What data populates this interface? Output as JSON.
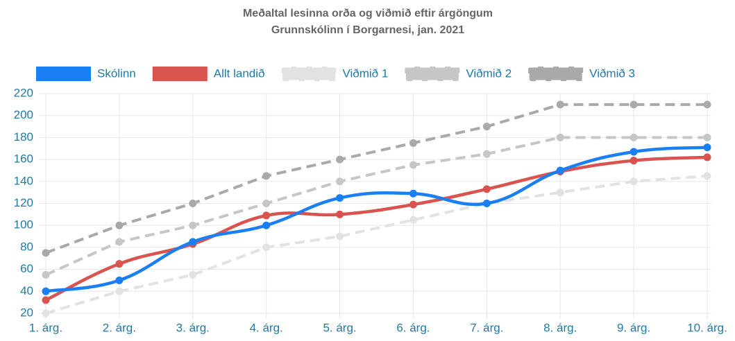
{
  "chart_data": {
    "type": "line",
    "title": "Meðaltal lesinna orða og viðmið eftir árgöngum",
    "subtitle": "Grunnskólinn í Borgarnesi, jan. 2021",
    "categories": [
      "1. árg.",
      "2. árg.",
      "3. árg.",
      "4. árg.",
      "5. árg.",
      "6. árg.",
      "7. árg.",
      "8. árg.",
      "9. árg.",
      "10. árg."
    ],
    "series": [
      {
        "name": "Skólinn",
        "color": "#1a7ff2",
        "dashed": false,
        "values": [
          40,
          50,
          85,
          100,
          125,
          129,
          120,
          150,
          167,
          171
        ]
      },
      {
        "name": "Allt landið",
        "color": "#d9534f",
        "dashed": false,
        "values": [
          32,
          65,
          83,
          109,
          110,
          119,
          133,
          149,
          159,
          162
        ]
      },
      {
        "name": "Viðmið 1",
        "color": "#e2e2e4",
        "dashed": true,
        "values": [
          20,
          40,
          55,
          80,
          90,
          105,
          120,
          130,
          140,
          145
        ]
      },
      {
        "name": "Viðmið 2",
        "color": "#c6c6c9",
        "dashed": true,
        "values": [
          55,
          85,
          100,
          120,
          140,
          155,
          165,
          180,
          180,
          180
        ]
      },
      {
        "name": "Viðmið 3",
        "color": "#a9a9ac",
        "dashed": true,
        "values": [
          75,
          100,
          120,
          145,
          160,
          175,
          190,
          210,
          210,
          210
        ]
      }
    ],
    "ylim": [
      20,
      220
    ],
    "yticks": [
      20,
      40,
      60,
      80,
      100,
      120,
      140,
      160,
      180,
      200,
      220
    ],
    "grid": true
  }
}
